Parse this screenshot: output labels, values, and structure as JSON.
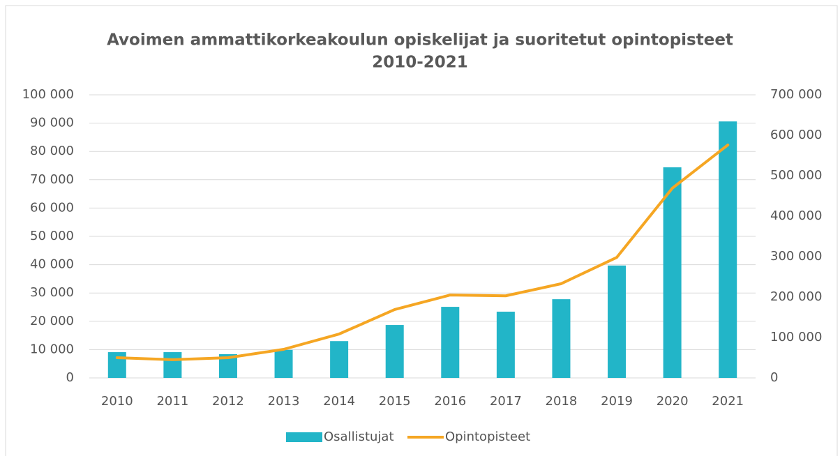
{
  "chart_data": {
    "type": "bar-line",
    "title": [
      "Avoimen ammattikorkeakoulun opiskelijat ja suoritetut opintopisteet",
      "2010-2021"
    ],
    "categories": [
      "2010",
      "2011",
      "2012",
      "2013",
      "2014",
      "2015",
      "2016",
      "2017",
      "2018",
      "2019",
      "2020",
      "2021"
    ],
    "series": [
      {
        "name": "Osallistujat",
        "type": "bar",
        "color": "#22b5c8",
        "axis": "y",
        "values": [
          9100,
          9100,
          8400,
          9900,
          13000,
          18700,
          25100,
          23400,
          27800,
          39700,
          74400,
          90600
        ]
      },
      {
        "name": "Opintopisteet",
        "type": "line",
        "color": "#f5a623",
        "axis": "y2",
        "values": [
          50000,
          45000,
          50000,
          70700,
          108600,
          169000,
          205000,
          203000,
          233000,
          298000,
          469000,
          576000
        ]
      }
    ],
    "ylim": [
      0,
      100000
    ],
    "yticks": [
      0,
      {
        "value": 10000,
        "label": "10 000"
      },
      {
        "value": 20000,
        "label": "20 000"
      },
      {
        "value": 30000,
        "label": "30 000"
      },
      {
        "value": 40000,
        "label": "40 000"
      },
      {
        "value": 50000,
        "label": "50 000"
      },
      {
        "value": 60000,
        "label": "60 000"
      },
      {
        "value": 70000,
        "label": "70 000"
      },
      {
        "value": 80000,
        "label": "80 000"
      },
      {
        "value": 90000,
        "label": "90 000"
      },
      {
        "value": 100000,
        "label": "100 000"
      }
    ],
    "y2lim": [
      0,
      700000
    ],
    "y2ticks": [
      0,
      {
        "value": 100000,
        "label": "100 000"
      },
      {
        "value": 200000,
        "label": "200 000"
      },
      {
        "value": 300000,
        "label": "300 000"
      },
      {
        "value": 400000,
        "label": "400 000"
      },
      {
        "value": 500000,
        "label": "500 000"
      },
      {
        "value": 600000,
        "label": "600 000"
      },
      {
        "value": 700000,
        "label": "700 000"
      }
    ],
    "grid": true,
    "legend": "bottom"
  }
}
